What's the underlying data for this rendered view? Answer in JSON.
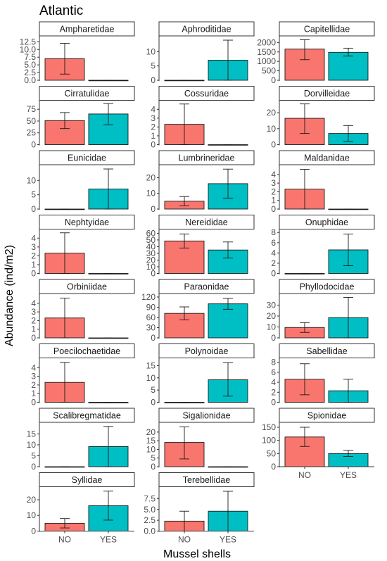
{
  "chart_data": {
    "type": "bar",
    "title": "Atlantic",
    "xlabel": "Mussel shells",
    "ylabel": "Abundance (ind/m2)",
    "categories": [
      "NO",
      "YES"
    ],
    "colors": [
      "#F8766D",
      "#00BFC4"
    ],
    "grid": false,
    "legend": "none",
    "panels": [
      {
        "name": "Ampharetidae",
        "values": [
          7.0,
          0.0
        ],
        "error": [
          [
            2.0,
            12.0
          ],
          [
            0.0,
            0.0
          ]
        ],
        "ylim": [
          0,
          13.5
        ],
        "ticks": [
          "0.0",
          "2.5",
          "5.0",
          "7.5",
          "10.0",
          "12.5"
        ]
      },
      {
        "name": "Aphroditidae",
        "values": [
          0.0,
          7.0
        ],
        "error": [
          [
            0.0,
            0.0
          ],
          [
            0.0,
            14.0
          ]
        ],
        "ylim": [
          0,
          14.5
        ],
        "ticks": [
          "0",
          "5",
          "10"
        ]
      },
      {
        "name": "Capitellidae",
        "values": [
          1650,
          1480
        ],
        "error": [
          [
            1090,
            2150
          ],
          [
            1280,
            1700
          ]
        ],
        "ylim": [
          0,
          2200
        ],
        "ticks": [
          "0",
          "500",
          "1000",
          "1500",
          "2000"
        ]
      },
      {
        "name": "Cirratulidae",
        "values": [
          51,
          65
        ],
        "error": [
          [
            34,
            68
          ],
          [
            42,
            87
          ]
        ],
        "ylim": [
          0,
          88
        ],
        "ticks": [
          "0",
          "25",
          "50",
          "75"
        ]
      },
      {
        "name": "Cossuridae",
        "values": [
          2.3,
          0.0
        ],
        "error": [
          [
            0.0,
            4.6
          ],
          [
            0.0,
            0.0
          ]
        ],
        "ylim": [
          0,
          4.7
        ],
        "ticks": [
          "0",
          "1",
          "2",
          "3",
          "4"
        ]
      },
      {
        "name": "Dorvilleidae",
        "values": [
          16.5,
          7.0
        ],
        "error": [
          [
            7.0,
            25.5
          ],
          [
            2.0,
            12.0
          ]
        ],
        "ylim": [
          0,
          26
        ],
        "ticks": [
          "0",
          "10",
          "20"
        ]
      },
      {
        "name": "Eunicidae",
        "values": [
          0.0,
          7.0
        ],
        "error": [
          [
            0.0,
            0.0
          ],
          [
            0.0,
            14.0
          ]
        ],
        "ylim": [
          0,
          14.5
        ],
        "ticks": [
          "0",
          "5",
          "10"
        ]
      },
      {
        "name": "Lumbrineridae",
        "values": [
          5.0,
          16.2
        ],
        "error": [
          [
            2.0,
            8.0
          ],
          [
            7.0,
            25.5
          ]
        ],
        "ylim": [
          0,
          26.5
        ],
        "ticks": [
          "0",
          "10",
          "20"
        ]
      },
      {
        "name": "Maldanidae",
        "values": [
          2.3,
          0.0
        ],
        "error": [
          [
            0.0,
            4.6
          ],
          [
            0.0,
            0.0
          ]
        ],
        "ylim": [
          0,
          4.8
        ],
        "ticks": [
          "0",
          "1",
          "2",
          "3",
          "4"
        ]
      },
      {
        "name": "Nephtyidae",
        "values": [
          2.3,
          0.0
        ],
        "error": [
          [
            0.0,
            4.6
          ],
          [
            0.0,
            0.0
          ]
        ],
        "ylim": [
          0,
          4.7
        ],
        "ticks": [
          "0",
          "1",
          "2",
          "3",
          "4"
        ]
      },
      {
        "name": "Nereididae",
        "values": [
          48.5,
          35.0
        ],
        "error": [
          [
            38.0,
            59.0
          ],
          [
            23.0,
            47.0
          ]
        ],
        "ylim": [
          0,
          62
        ],
        "ticks": [
          "0",
          "10",
          "20",
          "30",
          "40",
          "50",
          "60"
        ]
      },
      {
        "name": "Onuphidae",
        "values": [
          0.0,
          4.6
        ],
        "error": [
          [
            0.0,
            0.0
          ],
          [
            1.5,
            7.7
          ]
        ],
        "ylim": [
          0,
          8.1
        ],
        "ticks": [
          "0",
          "2",
          "4",
          "6",
          "8"
        ]
      },
      {
        "name": "Orbiniidae",
        "values": [
          2.3,
          0.0
        ],
        "error": [
          [
            0.0,
            4.6
          ],
          [
            0.0,
            0.0
          ]
        ],
        "ylim": [
          0,
          4.8
        ],
        "ticks": [
          "0",
          "1",
          "2",
          "3",
          "4"
        ]
      },
      {
        "name": "Paraonidae",
        "values": [
          72,
          100
        ],
        "error": [
          [
            53,
            91
          ],
          [
            84,
            116
          ]
        ],
        "ylim": [
          0,
          122
        ],
        "ticks": [
          "0",
          "30",
          "60",
          "90",
          "120"
        ]
      },
      {
        "name": "Phyllodocidae",
        "values": [
          9.5,
          18.5
        ],
        "error": [
          [
            5.0,
            14.0
          ],
          [
            0.0,
            37.0
          ]
        ],
        "ylim": [
          0,
          38
        ],
        "ticks": [
          "0",
          "10",
          "20",
          "30"
        ]
      },
      {
        "name": "Poecilochaetidae",
        "values": [
          2.3,
          0.0
        ],
        "error": [
          [
            0.0,
            4.6
          ],
          [
            0.0,
            0.0
          ]
        ],
        "ylim": [
          0,
          4.8
        ],
        "ticks": [
          "0",
          "1",
          "2",
          "3",
          "4"
        ]
      },
      {
        "name": "Polynoidae",
        "values": [
          0.0,
          9.2
        ],
        "error": [
          [
            0.0,
            0.0
          ],
          [
            2.5,
            16.2
          ]
        ],
        "ylim": [
          0,
          17
        ],
        "ticks": [
          "0",
          "5",
          "10",
          "15"
        ]
      },
      {
        "name": "Sabellidae",
        "values": [
          4.6,
          2.3
        ],
        "error": [
          [
            1.5,
            7.7
          ],
          [
            0.0,
            4.6
          ]
        ],
        "ylim": [
          0,
          8.3
        ],
        "ticks": [
          "0",
          "2",
          "4",
          "6",
          "8"
        ]
      },
      {
        "name": "Scalibregmatidae",
        "values": [
          0.0,
          9.2
        ],
        "error": [
          [
            0.0,
            0.0
          ],
          [
            0.0,
            18.4
          ]
        ],
        "ylim": [
          0,
          19
        ],
        "ticks": [
          "0",
          "5",
          "10",
          "15"
        ]
      },
      {
        "name": "Sigalionidae",
        "values": [
          14.0,
          0.0
        ],
        "error": [
          [
            4.5,
            23.0
          ],
          [
            0.0,
            0.0
          ]
        ],
        "ylim": [
          0,
          24
        ],
        "ticks": [
          "0",
          "5",
          "10",
          "15",
          "20"
        ]
      },
      {
        "name": "Spionidae",
        "values": [
          113,
          50
        ],
        "error": [
          [
            77,
            150
          ],
          [
            39,
            62
          ]
        ],
        "ylim": [
          0,
          158
        ],
        "ticks": [
          "0",
          "50",
          "100",
          "150"
        ]
      },
      {
        "name": "Syllidae",
        "values": [
          5.0,
          16.2
        ],
        "error": [
          [
            2.0,
            8.0
          ],
          [
            7.0,
            25.5
          ]
        ],
        "ylim": [
          0,
          26.5
        ],
        "ticks": [
          "0",
          "10",
          "20"
        ]
      },
      {
        "name": "Terebellidae",
        "values": [
          2.3,
          4.6
        ],
        "error": [
          [
            0.0,
            4.6
          ],
          [
            0.0,
            9.2
          ]
        ],
        "ylim": [
          0,
          9.6
        ],
        "ticks": [
          "0.0",
          "2.5",
          "5.0",
          "7.5"
        ]
      }
    ]
  }
}
